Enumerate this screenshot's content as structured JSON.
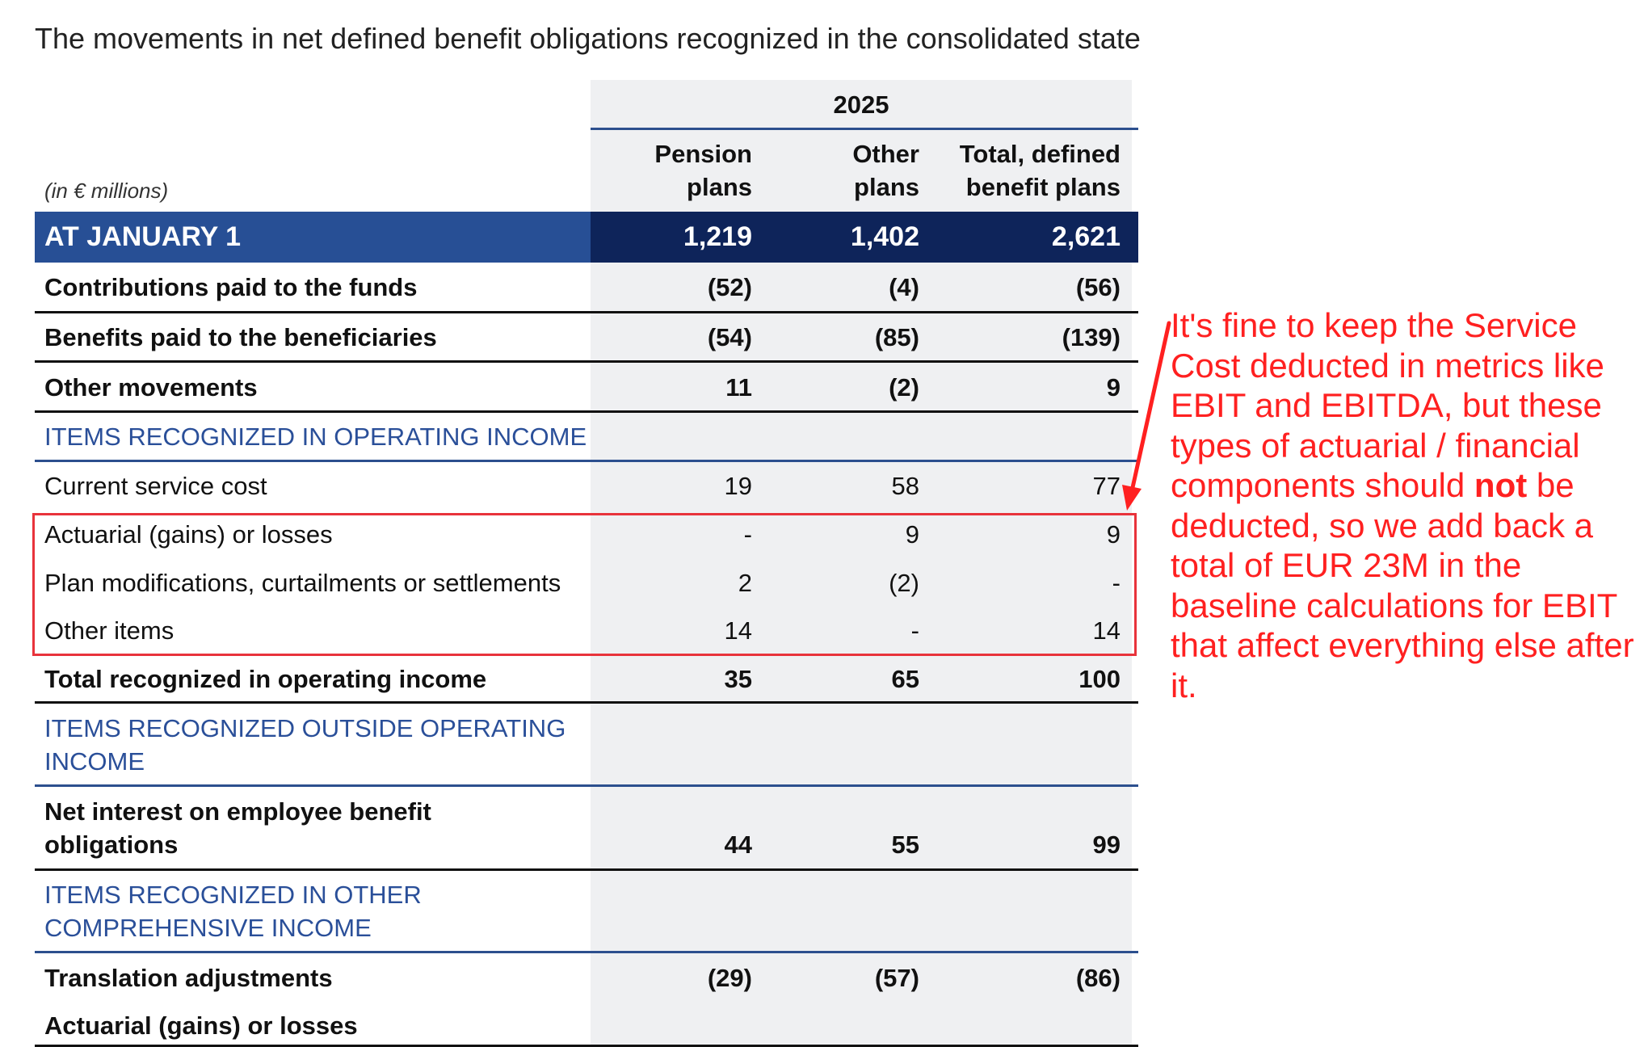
{
  "intro_text": "The movements in net defined benefit obligations recognized in the consolidated statem",
  "year": "2025",
  "unit": "(in € millions)",
  "columns": [
    "Pension plans",
    "Other plans",
    "Total, defined benefit plans"
  ],
  "column_lines": [
    [
      "Pension",
      "plans"
    ],
    [
      "Other",
      "plans"
    ],
    [
      "Total, defined",
      "benefit plans"
    ]
  ],
  "opening": {
    "label": "AT JANUARY 1",
    "values": [
      "1,219",
      "1,402",
      "2,621"
    ]
  },
  "rows": [
    {
      "label": "Contributions paid to the funds",
      "values": [
        "(52)",
        "(4)",
        "(56)"
      ]
    },
    {
      "label": "Benefits paid to the beneficiaries",
      "values": [
        "(54)",
        "(85)",
        "(139)"
      ]
    },
    {
      "label": "Other movements",
      "values": [
        "11",
        "(2)",
        "9"
      ]
    },
    {
      "label": "ITEMS RECOGNIZED IN OPERATING INCOME",
      "values": []
    },
    {
      "label": "Current service cost",
      "values": [
        "19",
        "58",
        "77"
      ]
    },
    {
      "label": "Actuarial (gains) or losses",
      "values": [
        "-",
        "9",
        "9"
      ]
    },
    {
      "label": "Plan modifications, curtailments or settlements",
      "values": [
        "2",
        "(2)",
        "-"
      ]
    },
    {
      "label": "Other items",
      "values": [
        "14",
        "-",
        "14"
      ]
    },
    {
      "label": "Total recognized in operating income",
      "values": [
        "35",
        "65",
        "100"
      ]
    },
    {
      "label": "ITEMS RECOGNIZED OUTSIDE OPERATING INCOME",
      "label_lines": [
        "ITEMS RECOGNIZED OUTSIDE OPERATING",
        "INCOME"
      ],
      "values": []
    },
    {
      "label": "Net interest on employee benefit obligations",
      "label_lines": [
        "Net interest on employee benefit",
        "obligations"
      ],
      "values": [
        "44",
        "55",
        "99"
      ]
    },
    {
      "label": "ITEMS RECOGNIZED IN OTHER COMPREHENSIVE INCOME",
      "label_lines": [
        "ITEMS RECOGNIZED IN OTHER",
        "COMPREHENSIVE INCOME"
      ],
      "values": []
    },
    {
      "label": "Translation adjustments",
      "values": [
        "(29)",
        "(57)",
        "(86)"
      ]
    },
    {
      "label": "Actuarial (gains) or losses",
      "values": []
    }
  ],
  "annotation": {
    "text_before": "It's fine to keep the Service Cost deducted in metrics like EBIT and EBITDA, but these types of actuarial / financial components should ",
    "emphasis": "not",
    "text_after": " be deducted, so we add back a total of EUR 23M in the baseline calculations for EBIT that affect everything else after it.",
    "color": "#ff2020"
  },
  "colors": {
    "band_left": "#274f95",
    "band_right": "#0e245a",
    "section_text": "#2a4f99",
    "highlight_box": "#e8333b"
  }
}
